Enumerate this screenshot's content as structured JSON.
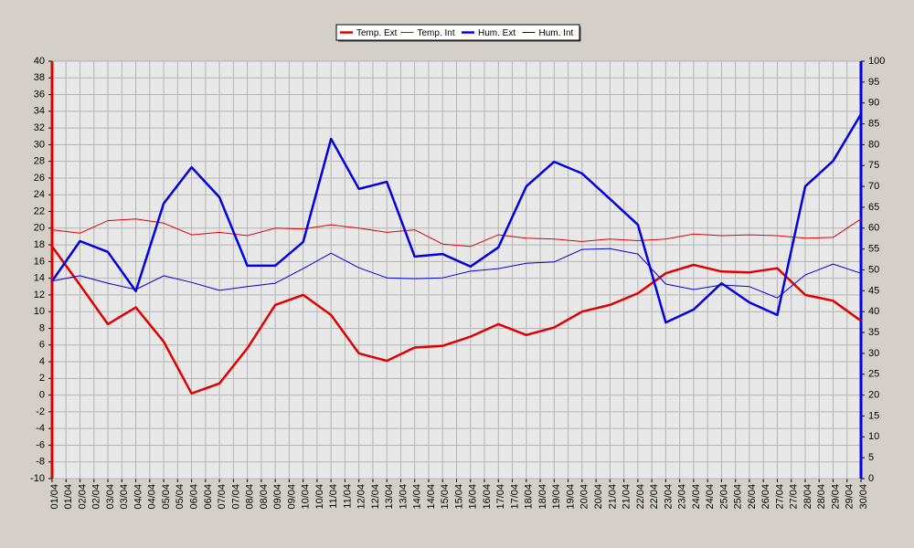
{
  "chart_data": {
    "type": "line",
    "x": [
      1,
      2,
      3,
      4,
      5,
      6,
      7,
      8,
      9,
      10,
      11,
      12,
      13,
      14,
      15,
      16,
      17,
      18,
      19,
      20,
      21,
      22,
      23,
      24,
      25,
      26,
      27,
      28,
      29,
      30
    ],
    "xlim": [
      1,
      30
    ],
    "xticks": [
      {
        "value": 1,
        "label": "01/04"
      },
      {
        "value": 1.5,
        "label": "01/04"
      },
      {
        "value": 2,
        "label": "02/04"
      },
      {
        "value": 2.5,
        "label": "02/04"
      },
      {
        "value": 3,
        "label": "03/04"
      },
      {
        "value": 3.5,
        "label": "03/04"
      },
      {
        "value": 4,
        "label": "04/04"
      },
      {
        "value": 4.5,
        "label": "04/04"
      },
      {
        "value": 5,
        "label": "05/04"
      },
      {
        "value": 5.5,
        "label": "05/04"
      },
      {
        "value": 6,
        "label": "06/04"
      },
      {
        "value": 6.5,
        "label": "06/04"
      },
      {
        "value": 7,
        "label": "07/04"
      },
      {
        "value": 7.5,
        "label": "07/04"
      },
      {
        "value": 8,
        "label": "08/04"
      },
      {
        "value": 8.5,
        "label": "08/04"
      },
      {
        "value": 9,
        "label": "09/04"
      },
      {
        "value": 9.5,
        "label": "09/04"
      },
      {
        "value": 10,
        "label": "10/04"
      },
      {
        "value": 10.5,
        "label": "10/04"
      },
      {
        "value": 11,
        "label": "11/04"
      },
      {
        "value": 11.5,
        "label": "11/04"
      },
      {
        "value": 12,
        "label": "12/04"
      },
      {
        "value": 12.5,
        "label": "12/04"
      },
      {
        "value": 13,
        "label": "13/04"
      },
      {
        "value": 13.5,
        "label": "13/04"
      },
      {
        "value": 14,
        "label": "14/04"
      },
      {
        "value": 14.5,
        "label": "14/04"
      },
      {
        "value": 15,
        "label": "15/04"
      },
      {
        "value": 15.5,
        "label": "15/04"
      },
      {
        "value": 16,
        "label": "16/04"
      },
      {
        "value": 16.5,
        "label": "16/04"
      },
      {
        "value": 17,
        "label": "17/04"
      },
      {
        "value": 17.5,
        "label": "17/04"
      },
      {
        "value": 18,
        "label": "18/04"
      },
      {
        "value": 18.5,
        "label": "18/04"
      },
      {
        "value": 19,
        "label": "19/04"
      },
      {
        "value": 19.5,
        "label": "19/04"
      },
      {
        "value": 20,
        "label": "20/04"
      },
      {
        "value": 20.5,
        "label": "20/04"
      },
      {
        "value": 21,
        "label": "21/04"
      },
      {
        "value": 21.5,
        "label": "21/04"
      },
      {
        "value": 22,
        "label": "22/04"
      },
      {
        "value": 22.5,
        "label": "22/04"
      },
      {
        "value": 23,
        "label": "23/04"
      },
      {
        "value": 23.5,
        "label": "23/04"
      },
      {
        "value": 24,
        "label": "24/04"
      },
      {
        "value": 24.5,
        "label": "24/04"
      },
      {
        "value": 25,
        "label": "25/04"
      },
      {
        "value": 25.5,
        "label": "25/04"
      },
      {
        "value": 26,
        "label": "26/04"
      },
      {
        "value": 26.5,
        "label": "26/04"
      },
      {
        "value": 27,
        "label": "27/04"
      },
      {
        "value": 27.5,
        "label": "27/04"
      },
      {
        "value": 28,
        "label": "28/04"
      },
      {
        "value": 28.5,
        "label": "28/04"
      },
      {
        "value": 29,
        "label": "29/04"
      },
      {
        "value": 29.5,
        "label": "29/04"
      },
      {
        "value": 30,
        "label": "30/04"
      }
    ],
    "ylim": [
      -10,
      40
    ],
    "yticks": [
      -10,
      -8,
      -6,
      -4,
      -2,
      0,
      2,
      4,
      6,
      8,
      10,
      12,
      14,
      16,
      18,
      20,
      22,
      24,
      26,
      28,
      30,
      32,
      34,
      36,
      38,
      40
    ],
    "y2lim": [
      0,
      100
    ],
    "y2ticks": [
      0,
      5,
      10,
      15,
      20,
      25,
      30,
      35,
      40,
      45,
      50,
      55,
      60,
      65,
      70,
      75,
      80,
      85,
      90,
      95,
      100
    ],
    "grid": true,
    "legend": "top",
    "series": [
      {
        "name": "Temp. Ext",
        "color": "#e00000",
        "line_width": 2.5,
        "values": [
          17.8,
          13.2,
          8.5,
          10.5,
          6.4,
          0.2,
          1.4,
          5.6,
          10.8,
          12.0,
          9.6,
          5.0,
          4.1,
          5.7,
          5.9,
          7.0,
          8.5,
          7.2,
          8.1,
          10.0,
          10.8,
          12.2,
          14.6,
          15.6,
          14.8,
          14.7,
          15.2,
          12.0,
          11.3,
          8.9
        ]
      },
      {
        "name": "Temp. Int",
        "color": "#e00000",
        "line_width": 1,
        "values": [
          19.8,
          19.4,
          20.9,
          21.1,
          20.6,
          19.2,
          19.5,
          19.1,
          20.0,
          19.9,
          20.4,
          20.0,
          19.5,
          19.8,
          18.1,
          17.8,
          19.2,
          18.8,
          18.7,
          18.4,
          18.7,
          18.5,
          18.7,
          19.3,
          19.1,
          19.2,
          19.1,
          18.8,
          18.9,
          21.1
        ]
      },
      {
        "name": "Hum. Ext",
        "color": "#0000e0",
        "line_width": 2.5,
        "axis": "y2",
        "values": [
          47.3,
          56.9,
          54.3,
          44.9,
          65.9,
          74.6,
          67.4,
          51.0,
          51.0,
          56.7,
          81.4,
          69.4,
          71.1,
          53.2,
          53.8,
          50.8,
          55.4,
          70.0,
          75.9,
          73.1,
          67.0,
          60.8,
          37.4,
          40.5,
          46.8,
          42.2,
          39.2,
          70.0,
          76.1,
          87.3
        ]
      },
      {
        "name": "Hum. Int",
        "color": "#0000e0",
        "line_width": 1,
        "axis": "y2",
        "values": [
          47.3,
          48.6,
          46.8,
          45.3,
          48.6,
          47.0,
          45.1,
          46.0,
          46.8,
          50.3,
          54.0,
          50.5,
          48.1,
          47.9,
          48.1,
          49.7,
          50.3,
          51.6,
          51.9,
          54.9,
          55.1,
          53.8,
          46.6,
          45.3,
          46.4,
          46.0,
          43.3,
          48.8,
          51.4,
          49.2
        ]
      }
    ]
  }
}
